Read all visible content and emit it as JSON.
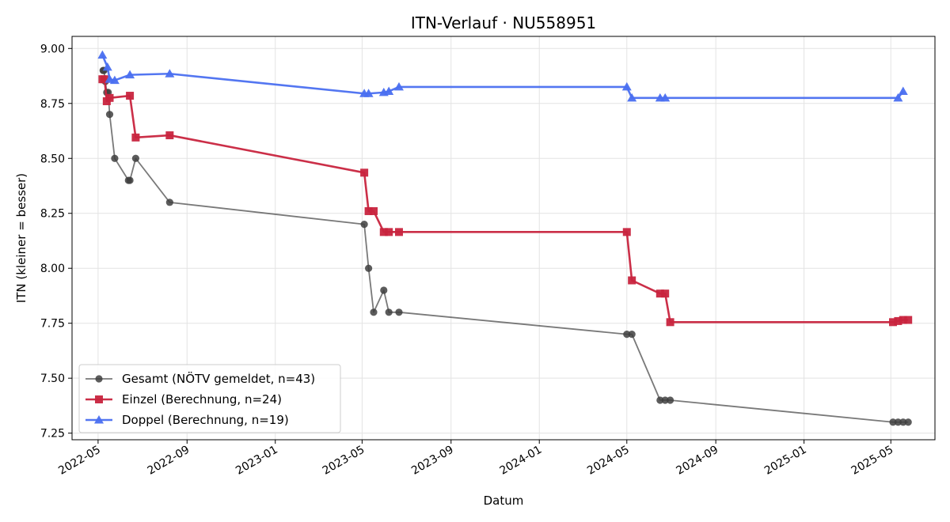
{
  "chart_data": {
    "type": "line",
    "title": "ITN-Verlauf · NU558951",
    "xlabel": "Datum",
    "ylabel": "ITN  (kleiner = besser)",
    "x_type": "date",
    "xlim": [
      "2022-03-26",
      "2025-07-01"
    ],
    "ylim": [
      7.22,
      9.055
    ],
    "grid": true,
    "legend_position": "lower-left",
    "x_ticks": [
      "2022-05-01",
      "2022-09-01",
      "2023-01-01",
      "2023-05-01",
      "2023-09-01",
      "2024-01-01",
      "2024-05-01",
      "2024-09-01",
      "2025-01-01",
      "2025-05-01"
    ],
    "x_tick_labels": [
      "2022-05",
      "2022-09",
      "2023-01",
      "2023-05",
      "2023-09",
      "2024-01",
      "2024-05",
      "2024-09",
      "2025-01",
      "2025-05"
    ],
    "y_ticks": [
      7.25,
      7.5,
      7.75,
      8.0,
      8.25,
      8.5,
      8.75,
      9.0
    ],
    "y_tick_labels": [
      "7.25",
      "7.50",
      "7.75",
      "8.00",
      "8.25",
      "8.50",
      "8.75",
      "9.00"
    ],
    "series": [
      {
        "name": "Gesamt (NÖTV gemeldet, n=43)",
        "color": "#404040",
        "marker": "circle",
        "points": [
          [
            "2022-05-08",
            8.9
          ],
          [
            "2022-05-09",
            8.9
          ],
          [
            "2022-05-11",
            8.85
          ],
          [
            "2022-05-13",
            8.8
          ],
          [
            "2022-05-15",
            8.8
          ],
          [
            "2022-05-17",
            8.7
          ],
          [
            "2022-05-24",
            8.5
          ],
          [
            "2022-06-12",
            8.4
          ],
          [
            "2022-06-14",
            8.4
          ],
          [
            "2022-06-22",
            8.5
          ],
          [
            "2022-08-08",
            8.3
          ],
          [
            "2023-05-04",
            8.2
          ],
          [
            "2023-05-10",
            8.0
          ],
          [
            "2023-05-17",
            7.8
          ],
          [
            "2023-05-31",
            7.9
          ],
          [
            "2023-06-07",
            7.8
          ],
          [
            "2023-06-21",
            7.8
          ],
          [
            "2024-05-01",
            7.7
          ],
          [
            "2024-05-08",
            7.7
          ],
          [
            "2024-06-16",
            7.4
          ],
          [
            "2024-06-23",
            7.4
          ],
          [
            "2024-06-30",
            7.4
          ],
          [
            "2025-05-04",
            7.3
          ],
          [
            "2025-05-11",
            7.3
          ],
          [
            "2025-05-18",
            7.3
          ],
          [
            "2025-05-25",
            7.3
          ]
        ]
      },
      {
        "name": "Einzel (Berechnung, n=24)",
        "color": "#c8243e",
        "marker": "square",
        "points": [
          [
            "2022-05-07",
            8.86
          ],
          [
            "2022-05-10",
            8.86
          ],
          [
            "2022-05-13",
            8.76
          ],
          [
            "2022-05-17",
            8.775
          ],
          [
            "2022-06-14",
            8.785
          ],
          [
            "2022-06-22",
            8.595
          ],
          [
            "2022-08-08",
            8.605
          ],
          [
            "2023-05-04",
            8.435
          ],
          [
            "2023-05-10",
            8.26
          ],
          [
            "2023-05-17",
            8.26
          ],
          [
            "2023-05-31",
            8.165
          ],
          [
            "2023-06-07",
            8.165
          ],
          [
            "2023-06-21",
            8.165
          ],
          [
            "2024-05-01",
            8.165
          ],
          [
            "2024-05-08",
            7.945
          ],
          [
            "2024-06-16",
            7.885
          ],
          [
            "2024-06-23",
            7.885
          ],
          [
            "2024-06-30",
            7.755
          ],
          [
            "2025-05-04",
            7.755
          ],
          [
            "2025-05-11",
            7.76
          ],
          [
            "2025-05-18",
            7.765
          ],
          [
            "2025-05-25",
            7.765
          ]
        ]
      },
      {
        "name": "Doppel (Berechnung, n=19)",
        "color": "#4a6ff0",
        "marker": "triangle",
        "points": [
          [
            "2022-05-07",
            8.97
          ],
          [
            "2022-05-14",
            8.915
          ],
          [
            "2022-05-17",
            8.86
          ],
          [
            "2022-05-24",
            8.855
          ],
          [
            "2022-06-14",
            8.88
          ],
          [
            "2022-08-08",
            8.885
          ],
          [
            "2023-05-04",
            8.795
          ],
          [
            "2023-05-10",
            8.795
          ],
          [
            "2023-05-31",
            8.8
          ],
          [
            "2023-06-07",
            8.805
          ],
          [
            "2023-06-21",
            8.825
          ],
          [
            "2024-05-01",
            8.825
          ],
          [
            "2024-05-08",
            8.775
          ],
          [
            "2024-06-16",
            8.775
          ],
          [
            "2024-06-23",
            8.775
          ],
          [
            "2025-05-11",
            8.775
          ],
          [
            "2025-05-18",
            8.805
          ]
        ]
      }
    ]
  }
}
